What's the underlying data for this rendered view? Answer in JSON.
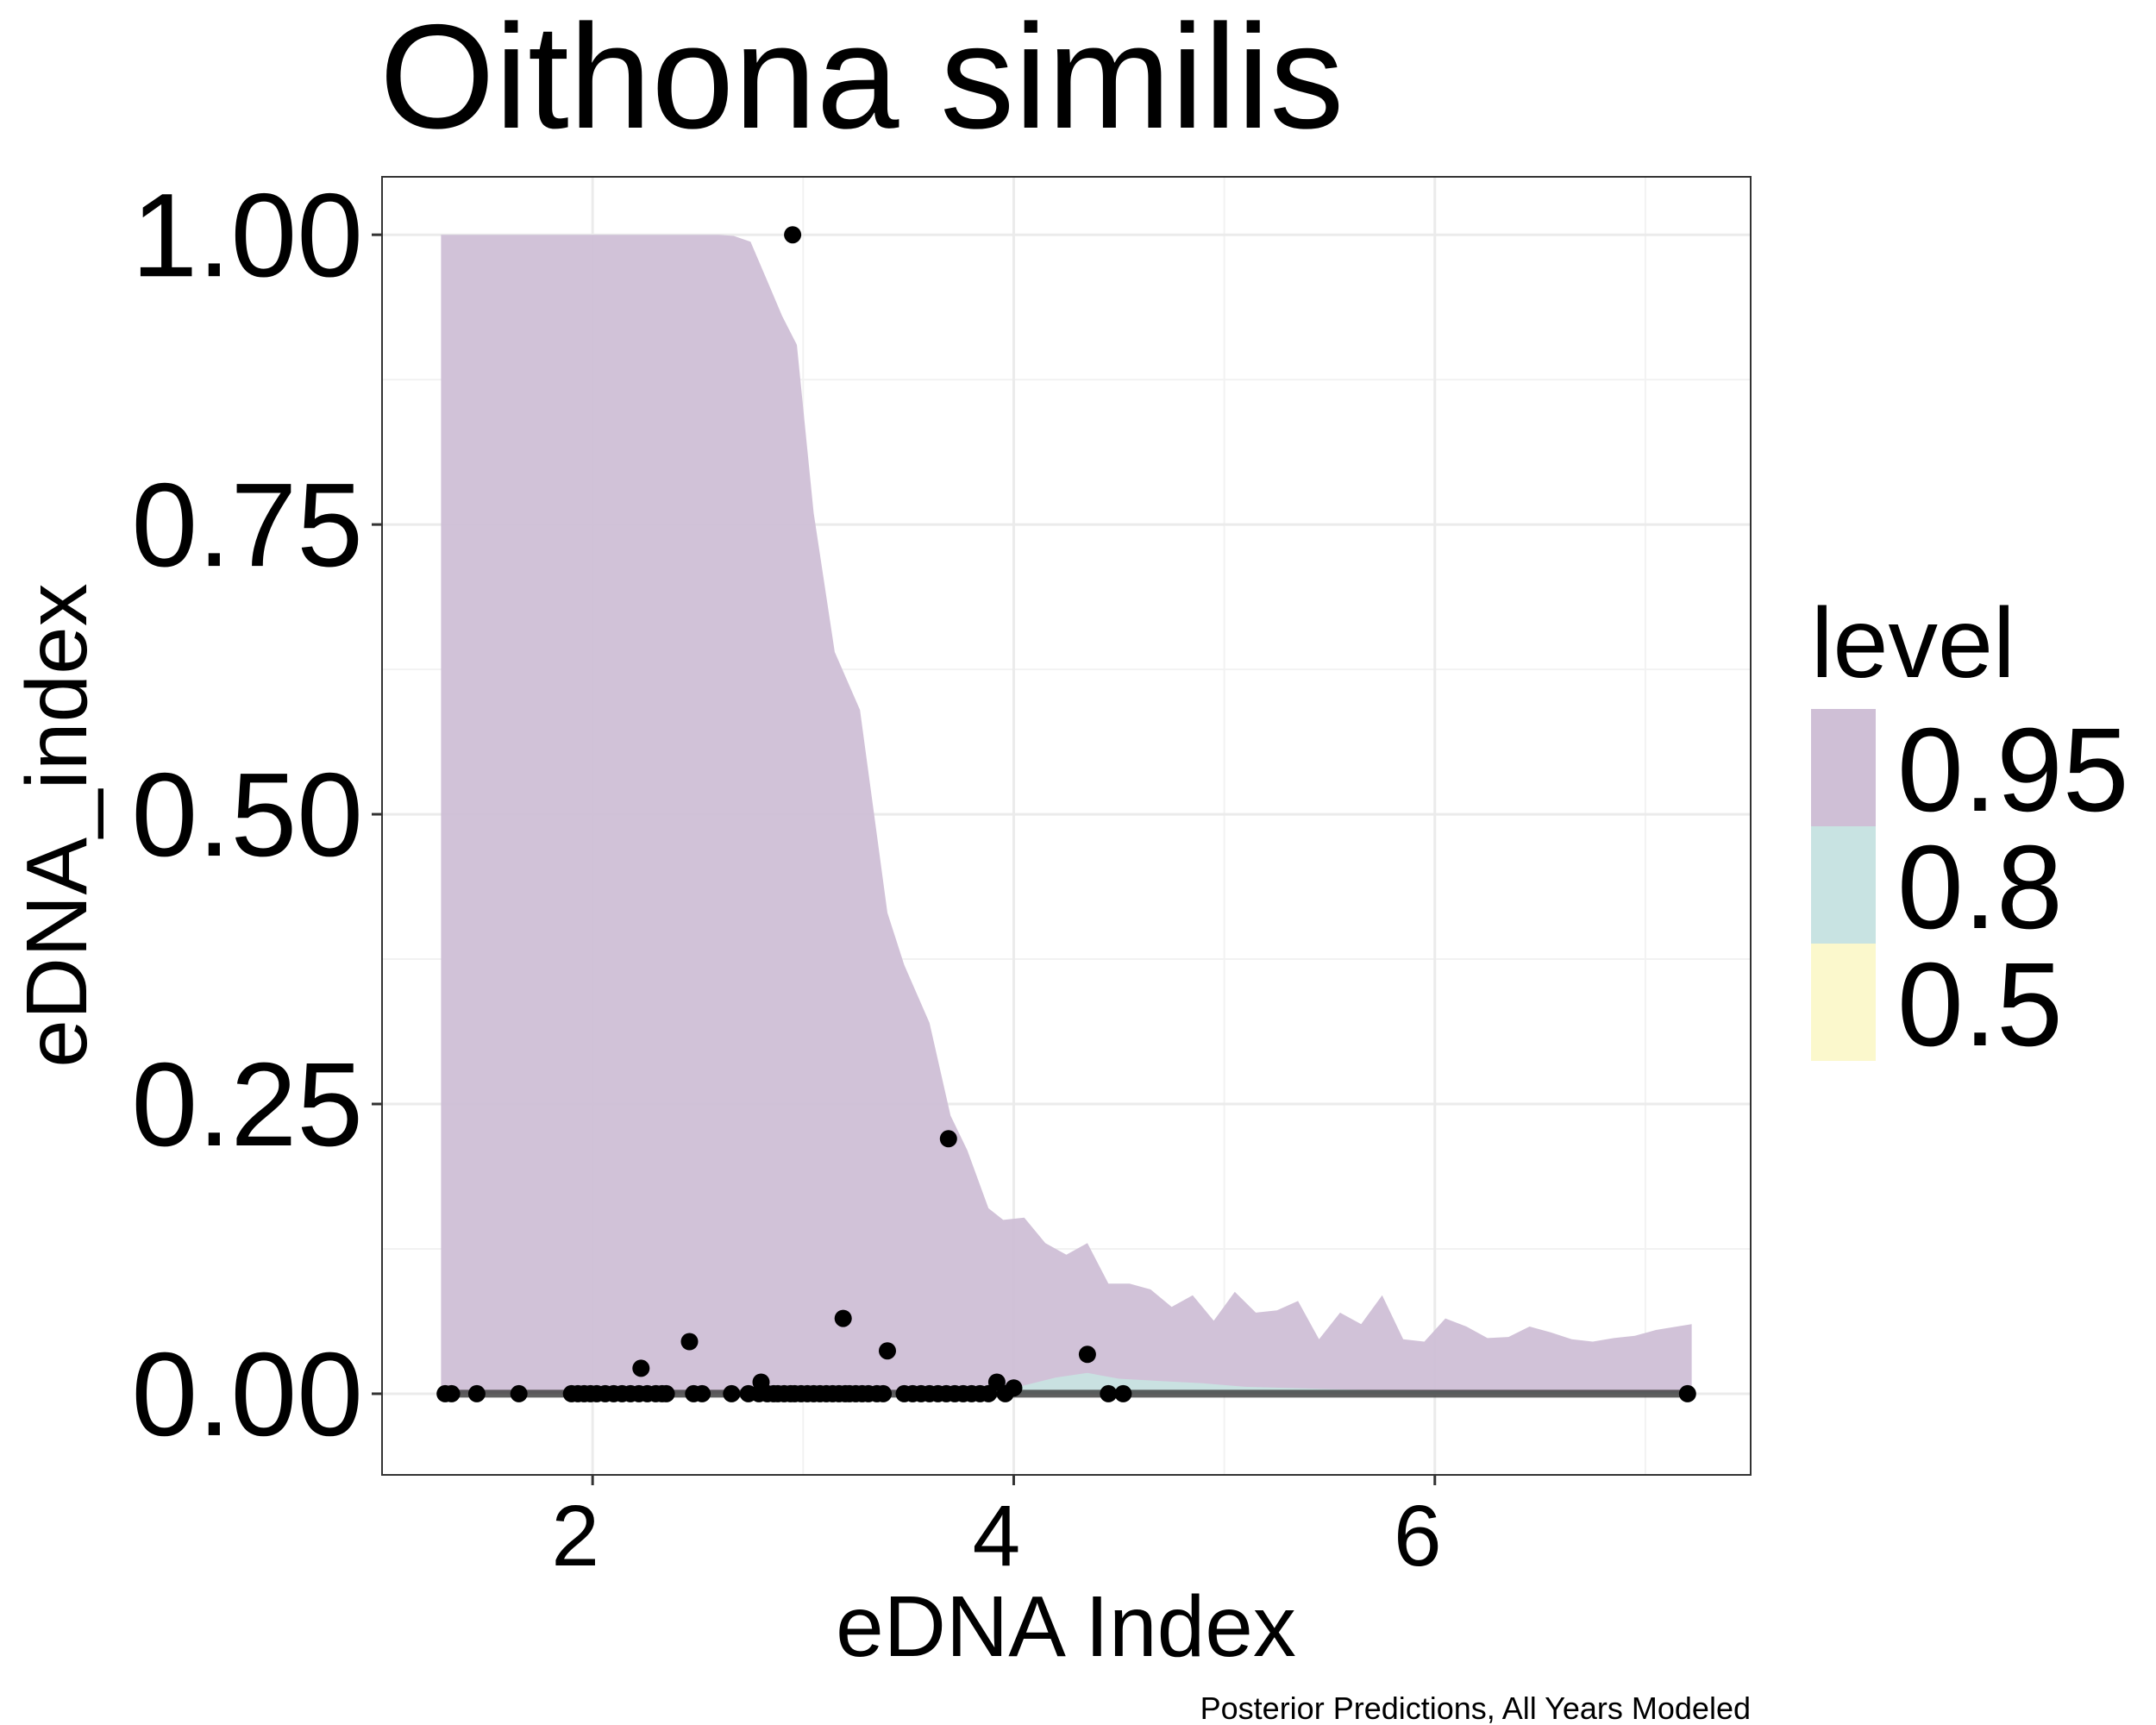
{
  "chart_data": {
    "type": "area",
    "title": "Oithona similis",
    "xlabel": "eDNA Index",
    "ylabel": "eDNA_index",
    "caption": "Posterior Predictions, All Years Modeled",
    "xlim": [
      1.0,
      7.5
    ],
    "ylim": [
      -0.07,
      1.05
    ],
    "x_ticks": [
      {
        "value": 2,
        "label": "2"
      },
      {
        "value": 4,
        "label": "4"
      },
      {
        "value": 6,
        "label": "6"
      }
    ],
    "y_ticks": [
      {
        "value": 0.0,
        "label": "0.00"
      },
      {
        "value": 0.25,
        "label": "0.25"
      },
      {
        "value": 0.5,
        "label": "0.50"
      },
      {
        "value": 0.75,
        "label": "0.75"
      },
      {
        "value": 1.0,
        "label": "1.00"
      }
    ],
    "grid": true,
    "legend": {
      "title": "level",
      "position": "right",
      "items": [
        {
          "label": "0.95",
          "color": "#cfbfd6"
        },
        {
          "label": "0.8",
          "color": "#c8e3e2"
        },
        {
          "label": "0.5",
          "color": "#fbf8cc"
        }
      ]
    },
    "series": [
      {
        "name": "0.95",
        "kind": "ribbon",
        "color": "#cfbfd6",
        "x": [
          1.28,
          1.4,
          1.6,
          1.8,
          2.0,
          2.2,
          2.4,
          2.5,
          2.6,
          2.67,
          2.75,
          2.83,
          2.9,
          2.97,
          3.05,
          3.15,
          3.27,
          3.4,
          3.48,
          3.6,
          3.7,
          3.78,
          3.88,
          3.95,
          4.05,
          4.15,
          4.25,
          4.35,
          4.45,
          4.55,
          4.65,
          4.75,
          4.85,
          4.95,
          5.05,
          5.15,
          5.25,
          5.35,
          5.45,
          5.55,
          5.65,
          5.75,
          5.85,
          5.95,
          6.05,
          6.15,
          6.25,
          6.35,
          6.45,
          6.55,
          6.65,
          6.75,
          6.85,
          6.95,
          7.05,
          7.15,
          7.22
        ],
        "upper": [
          1.0,
          1.0,
          1.0,
          1.0,
          1.0,
          1.0,
          1.0,
          1.0,
          1.0,
          0.999,
          0.994,
          0.96,
          0.93,
          0.905,
          0.76,
          0.64,
          0.59,
          0.415,
          0.37,
          0.32,
          0.24,
          0.21,
          0.16,
          0.15,
          0.152,
          0.13,
          0.12,
          0.13,
          0.095,
          0.095,
          0.09,
          0.075,
          0.085,
          0.063,
          0.088,
          0.07,
          0.072,
          0.08,
          0.047,
          0.07,
          0.06,
          0.085,
          0.047,
          0.045,
          0.065,
          0.058,
          0.048,
          0.049,
          0.058,
          0.053,
          0.047,
          0.045,
          0.048,
          0.05,
          0.055,
          0.058,
          0.06
        ],
        "lower": [
          0,
          0,
          0,
          0,
          0,
          0,
          0,
          0,
          0,
          0,
          0,
          0,
          0,
          0,
          0,
          0,
          0,
          0,
          0,
          0,
          0,
          0,
          0,
          0,
          0,
          0,
          0,
          0,
          0,
          0,
          0,
          0,
          0,
          0,
          0,
          0,
          0,
          0,
          0,
          0,
          0,
          0,
          0,
          0,
          0,
          0,
          0,
          0,
          0,
          0,
          0,
          0,
          0,
          0,
          0,
          0,
          0
        ]
      },
      {
        "name": "0.8",
        "kind": "ribbon",
        "color": "#c8e3e2",
        "x": [
          3.4,
          3.6,
          3.8,
          4.0,
          4.2,
          4.35,
          4.5,
          4.7,
          4.9,
          5.1,
          5.5,
          6.0,
          7.22
        ],
        "upper": [
          0.0,
          0.003,
          0.003,
          0.005,
          0.014,
          0.018,
          0.013,
          0.011,
          0.009,
          0.006,
          0.004,
          0.002,
          0.001
        ],
        "lower": [
          0,
          0,
          0,
          0,
          0,
          0,
          0,
          0,
          0,
          0,
          0,
          0,
          0
        ]
      },
      {
        "name": "median",
        "kind": "line",
        "color": "#444444",
        "x": [
          1.28,
          7.22
        ],
        "y": [
          0.0,
          0.0
        ]
      },
      {
        "name": "observations",
        "kind": "points",
        "color": "#000000",
        "x": [
          1.3,
          1.33,
          1.45,
          1.65,
          1.9,
          1.93,
          1.96,
          1.99,
          2.02,
          2.06,
          2.1,
          2.14,
          2.18,
          2.22,
          2.26,
          2.3,
          2.33,
          2.35,
          2.23,
          2.46,
          2.48,
          2.52,
          2.66,
          2.74,
          2.79,
          2.8,
          2.83,
          2.86,
          2.88,
          2.91,
          2.94,
          2.96,
          2.99,
          3.02,
          3.05,
          3.08,
          3.11,
          3.14,
          3.17,
          3.19,
          3.22,
          3.25,
          3.28,
          3.31,
          3.35,
          3.38,
          3.4,
          3.48,
          3.52,
          3.56,
          3.6,
          3.64,
          3.68,
          3.69,
          3.72,
          3.76,
          3.8,
          3.84,
          3.88,
          3.92,
          3.96,
          4.0,
          2.95,
          3.2,
          4.35,
          4.45,
          4.52,
          7.2
        ],
        "y": [
          0,
          0,
          0,
          0,
          0,
          0,
          0,
          0,
          0,
          0,
          0,
          0,
          0,
          0,
          0,
          0,
          0,
          0,
          0.022,
          0.045,
          0,
          0,
          0,
          0,
          0,
          0.01,
          0,
          0,
          0,
          0,
          0,
          0,
          0,
          0,
          0,
          0,
          0,
          0,
          0,
          0.065,
          0,
          0,
          0,
          0,
          0,
          0,
          0.037,
          0,
          0,
          0,
          0,
          0,
          0,
          0.22,
          0,
          0,
          0,
          0,
          0,
          0.01,
          0,
          0.005,
          1.0,
          0,
          0.034,
          0,
          0,
          0
        ]
      }
    ]
  }
}
